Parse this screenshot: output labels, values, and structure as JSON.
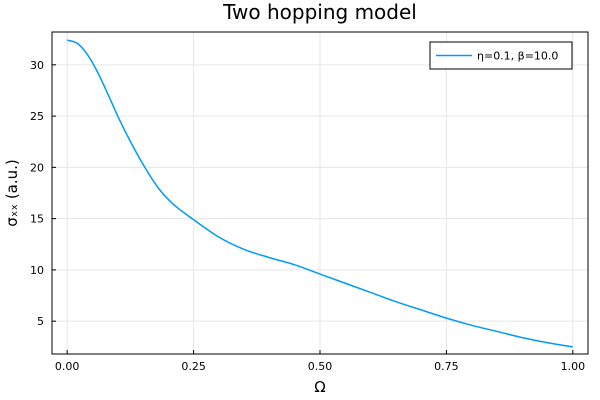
{
  "chart_data": {
    "type": "line",
    "title": "Two hopping model",
    "xlabel": "Ω",
    "ylabel": "σₓₓ (a.u.)",
    "xlim": [
      -0.03,
      1.03
    ],
    "ylim": [
      1.8,
      33.2
    ],
    "xticks": [
      0.0,
      0.25,
      0.5,
      0.75,
      1.0
    ],
    "xtick_labels": [
      "0.00",
      "0.25",
      "0.50",
      "0.75",
      "1.00"
    ],
    "yticks": [
      5,
      10,
      15,
      20,
      25,
      30
    ],
    "ytick_labels": [
      "5",
      "10",
      "15",
      "20",
      "25",
      "30"
    ],
    "grid": true,
    "legend_position": "top-right",
    "series": [
      {
        "name": "η=0.1, β=10.0",
        "color": "#009af9",
        "x": [
          0.0,
          0.02,
          0.04,
          0.06,
          0.08,
          0.1,
          0.12,
          0.15,
          0.18,
          0.21,
          0.25,
          0.3,
          0.35,
          0.4,
          0.45,
          0.5,
          0.55,
          0.6,
          0.65,
          0.7,
          0.75,
          0.8,
          0.85,
          0.9,
          0.95,
          1.0
        ],
        "y": [
          32.4,
          32.1,
          31.0,
          29.3,
          27.2,
          25.0,
          23.0,
          20.3,
          18.0,
          16.4,
          14.9,
          13.2,
          12.0,
          11.2,
          10.5,
          9.6,
          8.7,
          7.8,
          6.9,
          6.1,
          5.3,
          4.6,
          4.0,
          3.4,
          2.9,
          2.5
        ]
      }
    ]
  }
}
